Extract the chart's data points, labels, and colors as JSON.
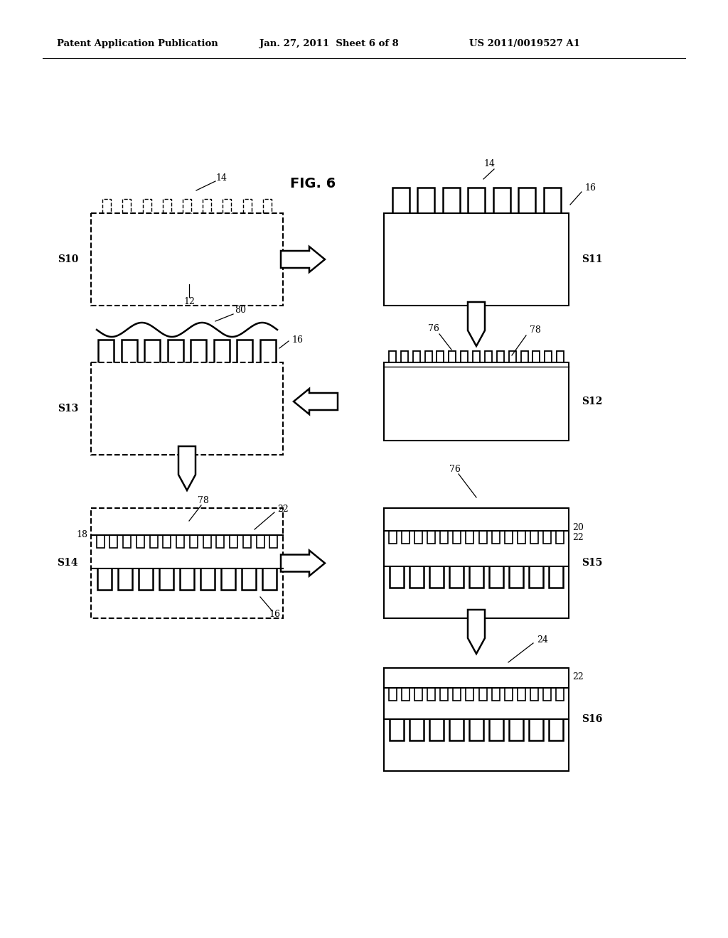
{
  "bg_color": "#ffffff",
  "header_left": "Patent Application Publication",
  "header_center": "Jan. 27, 2011  Sheet 6 of 8",
  "header_right": "US 2011/0019527 A1",
  "fig_title": "FIG. 6"
}
